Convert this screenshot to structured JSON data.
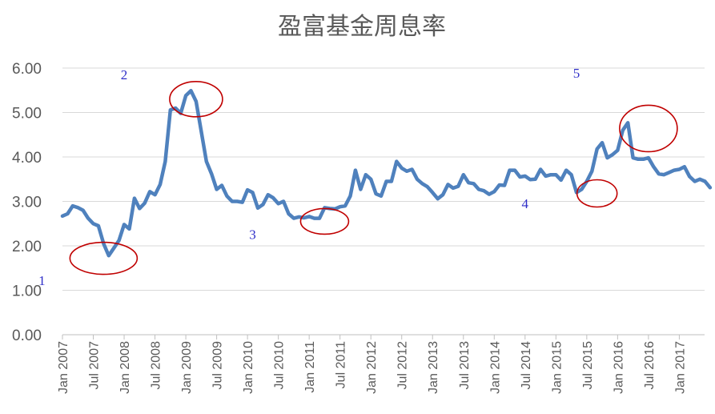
{
  "chart_data": {
    "type": "line",
    "title": "盈富基金周息率",
    "xlabel": "",
    "ylabel": "",
    "ylim": [
      0,
      6
    ],
    "y_ticks": [
      "0.00",
      "1.00",
      "2.00",
      "3.00",
      "4.00",
      "5.00",
      "6.00"
    ],
    "x_tick_labels": [
      "Jan 2007",
      "Jul 2007",
      "Jan 2008",
      "Jul 2008",
      "Jan 2009",
      "Jul 2009",
      "Jan 2010",
      "Jul 2010",
      "Jan 2011",
      "Jul 2011",
      "Jan 2012",
      "Jul 2012",
      "Jan 2013",
      "Jul 2013",
      "Jan 2014",
      "Jul 2014",
      "Jan 2015",
      "Jul 2015",
      "Jan 2016",
      "Jul 2016",
      "Jan 2017"
    ],
    "grid": "horizontal",
    "legend": "none",
    "line_color": "#4f81bd",
    "annotation_color": "#c00000",
    "label_color": "#2e2ec8",
    "series": [
      {
        "start": "Jan 2007",
        "frequency": "monthly",
        "values": [
          2.67,
          2.72,
          2.9,
          2.86,
          2.8,
          2.62,
          2.5,
          2.45,
          2.05,
          1.78,
          1.95,
          2.12,
          2.48,
          2.38,
          3.07,
          2.84,
          2.96,
          3.22,
          3.15,
          3.38,
          3.9,
          5.06,
          5.1,
          4.98,
          5.38,
          5.49,
          5.25,
          4.58,
          3.9,
          3.62,
          3.27,
          3.36,
          3.12,
          3.0,
          3.0,
          2.98,
          3.26,
          3.2,
          2.85,
          2.93,
          3.15,
          3.08,
          2.95,
          3.0,
          2.72,
          2.62,
          2.65,
          2.63,
          2.66,
          2.62,
          2.62,
          2.86,
          2.84,
          2.83,
          2.88,
          2.9,
          3.12,
          3.7,
          3.27,
          3.6,
          3.5,
          3.17,
          3.12,
          3.45,
          3.45,
          3.9,
          3.75,
          3.68,
          3.72,
          3.5,
          3.4,
          3.33,
          3.2,
          3.06,
          3.15,
          3.38,
          3.3,
          3.34,
          3.6,
          3.42,
          3.4,
          3.27,
          3.24,
          3.16,
          3.22,
          3.37,
          3.36,
          3.7,
          3.7,
          3.55,
          3.57,
          3.49,
          3.5,
          3.72,
          3.57,
          3.6,
          3.6,
          3.48,
          3.7,
          3.6,
          3.2,
          3.27,
          3.45,
          3.68,
          4.18,
          4.32,
          3.98,
          4.05,
          4.15,
          4.6,
          4.77,
          3.98,
          3.95,
          3.95,
          3.98,
          3.78,
          3.62,
          3.6,
          3.65,
          3.7,
          3.72,
          3.78,
          3.56,
          3.45,
          3.5,
          3.45,
          3.31
        ]
      }
    ],
    "annotations": [
      {
        "label": "1",
        "x": "Sep 2006",
        "y": 1.12
      },
      {
        "label": "2",
        "x": "Jan 2008",
        "y": 5.75
      },
      {
        "label": "3",
        "x": "Feb 2010",
        "y": 2.15
      },
      {
        "label": "4",
        "x": "Jul 2014",
        "y": 2.85
      },
      {
        "label": "5",
        "x": "May 2015",
        "y": 5.78
      }
    ],
    "highlights": [
      {
        "center_x": "Sep 2007",
        "center_y": 1.72
      },
      {
        "center_x": "Mar 2009",
        "center_y": 5.3
      },
      {
        "center_x": "Apr 2011",
        "center_y": 2.55
      },
      {
        "center_x": "Sep 2015",
        "center_y": 3.18
      },
      {
        "center_x": "Jul 2016",
        "center_y": 4.64
      }
    ]
  }
}
